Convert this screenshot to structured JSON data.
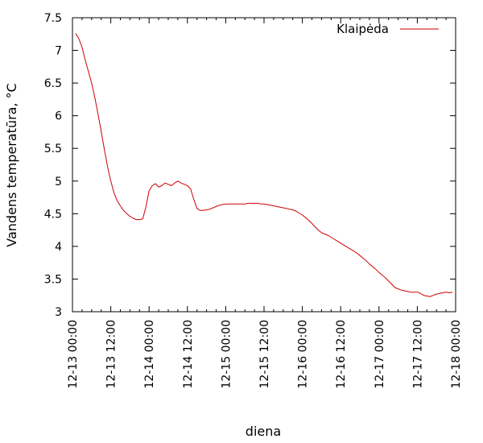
{
  "chart_data": {
    "type": "line",
    "title": "",
    "xlabel": "diena",
    "ylabel": "Vandens temperatūra,  °C",
    "xlim": [
      0,
      120
    ],
    "ylim": [
      3,
      7.5
    ],
    "y_ticks": [
      {
        "value": 3,
        "label": "3"
      },
      {
        "value": 3.5,
        "label": "3.5"
      },
      {
        "value": 4,
        "label": "4"
      },
      {
        "value": 4.5,
        "label": "4.5"
      },
      {
        "value": 5,
        "label": "5"
      },
      {
        "value": 5.5,
        "label": "5.5"
      },
      {
        "value": 6,
        "label": "6"
      },
      {
        "value": 6.5,
        "label": "6.5"
      },
      {
        "value": 7,
        "label": "7"
      },
      {
        "value": 7.5,
        "label": "7.5"
      }
    ],
    "x_ticks": [
      {
        "value": 0,
        "label": "12-13 00:00"
      },
      {
        "value": 12,
        "label": "12-13 12:00"
      },
      {
        "value": 24,
        "label": "12-14 00:00"
      },
      {
        "value": 36,
        "label": "12-14 12:00"
      },
      {
        "value": 48,
        "label": "12-15 00:00"
      },
      {
        "value": 60,
        "label": "12-15 12:00"
      },
      {
        "value": 72,
        "label": "12-16 00:00"
      },
      {
        "value": 84,
        "label": "12-16 12:00"
      },
      {
        "value": 96,
        "label": "12-17 00:00"
      },
      {
        "value": 108,
        "label": "12-17 12:00"
      },
      {
        "value": 120,
        "label": "12-18 00:00"
      }
    ],
    "x_minor_step": 3,
    "grid": false,
    "legend_position": "top-right",
    "series": [
      {
        "name": "Klaipėda",
        "color": "#cc0000",
        "x": [
          1,
          2,
          3,
          4,
          5,
          6,
          7,
          8,
          9,
          10,
          11,
          12,
          13,
          14,
          15,
          16,
          17,
          18,
          19,
          20,
          21,
          22,
          23,
          24,
          25,
          26,
          27,
          28,
          29,
          30,
          31,
          32,
          33,
          34,
          35,
          36,
          37,
          38,
          39,
          40,
          41,
          42,
          43,
          44,
          45,
          46,
          47,
          48,
          49,
          50,
          51,
          52,
          53,
          54,
          55,
          56,
          57,
          58,
          59,
          60,
          61,
          62,
          63,
          64,
          65,
          66,
          67,
          68,
          69,
          70,
          71,
          72,
          73,
          74,
          75,
          76,
          77,
          78,
          79,
          80,
          81,
          82,
          83,
          84,
          85,
          86,
          87,
          88,
          89,
          90,
          91,
          92,
          93,
          94,
          95,
          96,
          97,
          98,
          99,
          100,
          101,
          102,
          103,
          104,
          105,
          106,
          107,
          108,
          109,
          110,
          111,
          112,
          113,
          114,
          115,
          116,
          117,
          118,
          119
        ],
        "y": [
          7.26,
          7.18,
          7.05,
          6.85,
          6.68,
          6.5,
          6.28,
          6.03,
          5.76,
          5.48,
          5.22,
          5.0,
          4.82,
          4.7,
          4.62,
          4.55,
          4.5,
          4.46,
          4.43,
          4.41,
          4.41,
          4.42,
          4.6,
          4.85,
          4.93,
          4.96,
          4.91,
          4.93,
          4.97,
          4.95,
          4.93,
          4.97,
          5.0,
          4.97,
          4.95,
          4.93,
          4.88,
          4.72,
          4.58,
          4.55,
          4.55,
          4.56,
          4.57,
          4.59,
          4.61,
          4.63,
          4.64,
          4.65,
          4.65,
          4.65,
          4.65,
          4.65,
          4.65,
          4.65,
          4.66,
          4.66,
          4.66,
          4.66,
          4.65,
          4.65,
          4.64,
          4.63,
          4.62,
          4.61,
          4.6,
          4.59,
          4.58,
          4.57,
          4.56,
          4.54,
          4.51,
          4.48,
          4.44,
          4.4,
          4.35,
          4.3,
          4.25,
          4.21,
          4.19,
          4.17,
          4.14,
          4.11,
          4.08,
          4.05,
          4.02,
          3.99,
          3.96,
          3.93,
          3.9,
          3.86,
          3.82,
          3.78,
          3.73,
          3.69,
          3.65,
          3.6,
          3.56,
          3.52,
          3.47,
          3.42,
          3.37,
          3.35,
          3.33,
          3.32,
          3.31,
          3.3,
          3.3,
          3.3,
          3.28,
          3.25,
          3.24,
          3.23,
          3.25,
          3.27,
          3.28,
          3.29,
          3.3,
          3.29,
          3.3
        ]
      }
    ]
  }
}
